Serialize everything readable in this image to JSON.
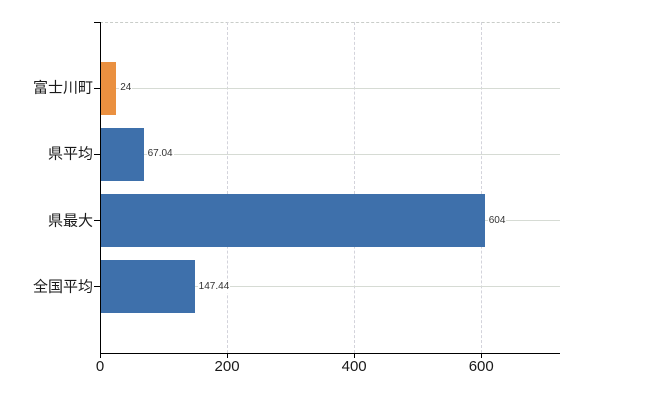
{
  "chart_data": {
    "type": "bar",
    "orientation": "horizontal",
    "title": "",
    "xlabel": "",
    "ylabel": "",
    "categories": [
      "富士川町",
      "県平均",
      "県最大",
      "全国平均"
    ],
    "values": [
      24,
      67.04,
      604,
      147.44
    ],
    "value_labels": [
      "24",
      "67.04",
      "604",
      "147.44"
    ],
    "x_ticks": [
      0,
      200,
      400,
      600
    ],
    "x_tick_labels": [
      "0",
      "200",
      "400",
      "600"
    ],
    "xlim": [
      0,
      724
    ],
    "grid": true,
    "legend": false,
    "bar_colors": [
      "#EA9040",
      "#3E70AB",
      "#3E70AB",
      "#3E70AB"
    ],
    "highlighted_category": "富士川町",
    "colors": {
      "axis": "#000000",
      "h_gridline": "#D6DBD4",
      "v_gridline": "#D3D3DB",
      "top_border": "#C9CDC9",
      "tick_text": "#1A1A1A",
      "value_text": "#333333",
      "background": "#FFFFFF"
    }
  }
}
